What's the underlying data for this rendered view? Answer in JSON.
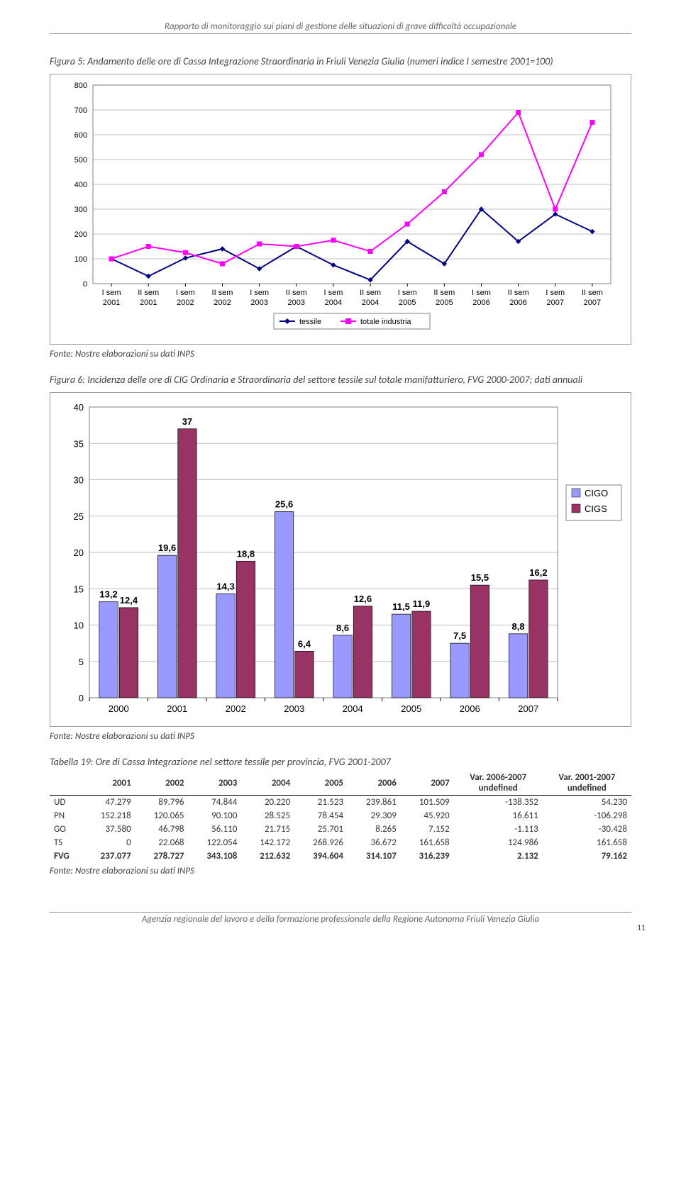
{
  "header": "Rapporto di monitoraggio sui piani di gestione delle situazioni di grave difficoltà occupazionale",
  "fig5": {
    "caption": "Figura 5: Andamento delle ore di Cassa Integrazione Straordinaria in Friuli Venezia Giulia (numeri indice I semestre 2001=100)",
    "type": "line",
    "categories": [
      "I sem 2001",
      "II sem 2001",
      "I sem 2002",
      "II sem 2002",
      "I sem 2003",
      "II sem 2003",
      "I sem 2004",
      "II sem 2004",
      "I sem 2005",
      "II sem 2005",
      "I sem 2006",
      "II sem 2006",
      "I sem 2007",
      "II sem 2007"
    ],
    "series": [
      {
        "name": "tessile",
        "color": "#000080",
        "marker": "diamond",
        "values": [
          100,
          30,
          103,
          140,
          60,
          150,
          75,
          15,
          170,
          80,
          300,
          170,
          280,
          210
        ]
      },
      {
        "name": "totale industria",
        "color": "#ff00ff",
        "marker": "square",
        "values": [
          100,
          150,
          125,
          80,
          160,
          150,
          175,
          130,
          240,
          370,
          520,
          690,
          300,
          650
        ]
      }
    ],
    "ylim": [
      0,
      800
    ],
    "ytick_step": 100,
    "grid_color": "#c0c0c0",
    "bg_color": "#ffffff",
    "border_color": "#808080",
    "line_width": 2,
    "marker_size": 6,
    "label_fontsize": 11
  },
  "source5": "Fonte: Nostre elaborazioni su dati INPS",
  "fig6": {
    "caption": "Figura 6: Incidenza delle ore di CIG Ordinaria e Straordinaria del settore tessile sul totale manifatturiero, FVG 2000-2007; dati annuali",
    "type": "bar",
    "categories": [
      "2000",
      "2001",
      "2002",
      "2003",
      "2004",
      "2005",
      "2006",
      "2007"
    ],
    "series": [
      {
        "name": "CIGO",
        "color": "#9999ff",
        "values": [
          13.2,
          19.6,
          14.3,
          25.6,
          8.6,
          11.5,
          7.5,
          8.8
        ]
      },
      {
        "name": "CIGS",
        "color": "#993366",
        "values": [
          12.4,
          37.0,
          18.8,
          6.4,
          12.6,
          11.9,
          15.5,
          16.2
        ]
      }
    ],
    "ylim": [
      0,
      40
    ],
    "ytick_step": 5,
    "grid_color": "#c0c0c0",
    "bg_color": "#ffffff",
    "border_color": "#808080",
    "bar_border": "#000000",
    "label_fontsize": 13,
    "value_fontsize": 13,
    "value_weight": "bold"
  },
  "source6": "Fonte: Nostre elaborazioni su dati INPS",
  "table19": {
    "caption": "Tabella 19: Ore di Cassa Integrazione nel settore tessile per provincia, FVG 2001-2007",
    "columns": [
      "",
      "2001",
      "2002",
      "2003",
      "2004",
      "2005",
      "2006",
      "2007",
      "Var. 2006-2007",
      "Var. 2001-2007"
    ],
    "rows": [
      [
        "UD",
        "47.279",
        "89.796",
        "74.844",
        "20.220",
        "21.523",
        "239.861",
        "101.509",
        "-138.352",
        "54.230"
      ],
      [
        "PN",
        "152.218",
        "120.065",
        "90.100",
        "28.525",
        "78.454",
        "29.309",
        "45.920",
        "16.611",
        "-106.298"
      ],
      [
        "GO",
        "37.580",
        "46.798",
        "56.110",
        "21.715",
        "25.701",
        "8.265",
        "7.152",
        "-1.113",
        "-30.428"
      ],
      [
        "TS",
        "0",
        "22.068",
        "122.054",
        "142.172",
        "268.926",
        "36.672",
        "161.658",
        "124.986",
        "161.658"
      ],
      [
        "FVG",
        "237.077",
        "278.727",
        "343.108",
        "212.632",
        "394.604",
        "314.107",
        "316.239",
        "2.132",
        "79.162"
      ]
    ],
    "bold_rows": [
      4
    ]
  },
  "sourceT": "Fonte: Nostre elaborazioni su dati INPS",
  "footer": "Agenzia regionale del lavoro e della formazione professionale della Regione Autonoma Friuli Venezia Giulia",
  "page_number": "11"
}
